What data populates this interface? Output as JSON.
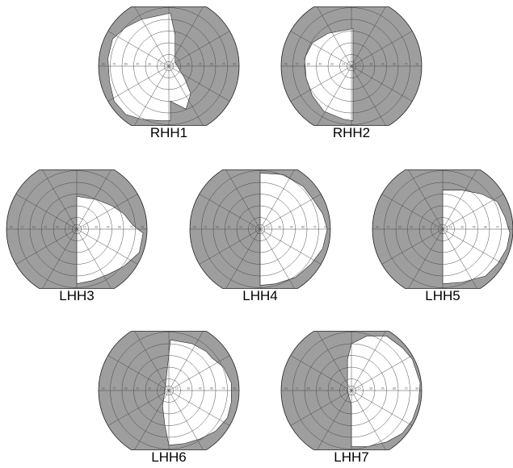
{
  "figure": {
    "colors": {
      "background": "#ffffff",
      "lost_field": "#9e9e9e",
      "seen_field": "#ffffff",
      "grid": "#444444",
      "outline": "#222222"
    },
    "panels": [
      {
        "label": "RHH1",
        "scale_labels": [
          "90",
          "75",
          "60",
          "45",
          "30",
          "15",
          "15",
          "30",
          "45",
          "60",
          "75",
          "90"
        ]
      },
      {
        "label": "RHH2",
        "scale_labels": [
          "90",
          "75",
          "60",
          "45",
          "30",
          "15",
          "15",
          "30",
          "45",
          "60",
          "75",
          "90"
        ]
      },
      {
        "label": "LHH3",
        "scale_labels": [
          "90",
          "75",
          "60",
          "45",
          "30",
          "15",
          "15",
          "30",
          "45",
          "60",
          "75",
          "90"
        ]
      },
      {
        "label": "LHH4",
        "scale_labels": [
          "90",
          "75",
          "60",
          "45",
          "30",
          "15",
          "15",
          "30",
          "45",
          "60",
          "75",
          "90"
        ]
      },
      {
        "label": "LHH5",
        "scale_labels": [
          "90",
          "75",
          "60",
          "45",
          "30",
          "15",
          "15",
          "30",
          "45",
          "60",
          "75",
          "90"
        ]
      },
      {
        "label": "LHH6",
        "scale_labels": [
          "90",
          "75",
          "60",
          "45",
          "30",
          "15",
          "15",
          "30",
          "45",
          "60",
          "75",
          "90"
        ]
      },
      {
        "label": "LHH7",
        "scale_labels": [
          "90",
          "75",
          "60",
          "45",
          "30",
          "15",
          "15",
          "30",
          "45",
          "60",
          "75",
          "90"
        ]
      }
    ]
  }
}
